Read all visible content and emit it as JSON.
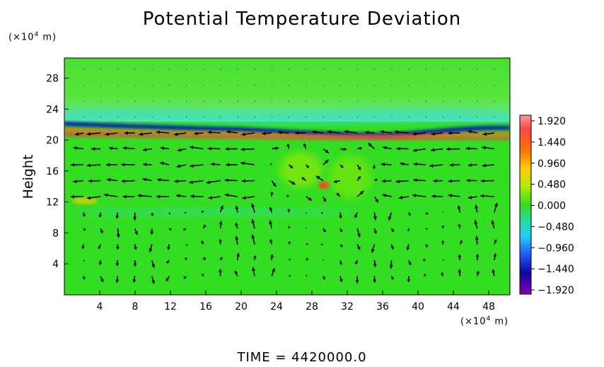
{
  "chart_data": {
    "type": "heatmap",
    "title": "Potential Temperature Deviation",
    "ylabel": "Height",
    "y_unit": {
      "prefix": "(×10",
      "exp": "4",
      "suffix": " m)"
    },
    "x_unit": {
      "prefix": "(×10",
      "exp": "4",
      "suffix": " m)"
    },
    "x_ticks": [
      "4",
      "8",
      "12",
      "16",
      "20",
      "24",
      "28",
      "32",
      "36",
      "40",
      "44",
      "48"
    ],
    "y_ticks": [
      "4",
      "8",
      "12",
      "16",
      "20",
      "24",
      "28"
    ],
    "xlim": [
      0,
      50.4
    ],
    "ylim": [
      0,
      30.6
    ],
    "colorbar": {
      "ticks": [
        "1.920",
        "1.440",
        "0.960",
        "0.480",
        "0.000",
        "−0.480",
        "−0.960",
        "−1.440",
        "−1.920"
      ],
      "range": [
        -2.16,
        2.16
      ]
    },
    "field_description_values": {
      "background": 0.0,
      "stratosphere": 0.3,
      "warm_band_y": 20.5,
      "cold_band_y": 21.2,
      "warm_spot_x": 30,
      "warm_spot_y": 14.5
    },
    "footer": "TIME  =  4420000.0"
  },
  "colors": {
    "background_green": "#33dd22",
    "stratosphere_green": "#55e83a",
    "warm": "#ff6622",
    "hot": "#ff3344",
    "cold": "#0a1ab0",
    "cyan": "#33ddcc",
    "arrow": "#000000"
  }
}
